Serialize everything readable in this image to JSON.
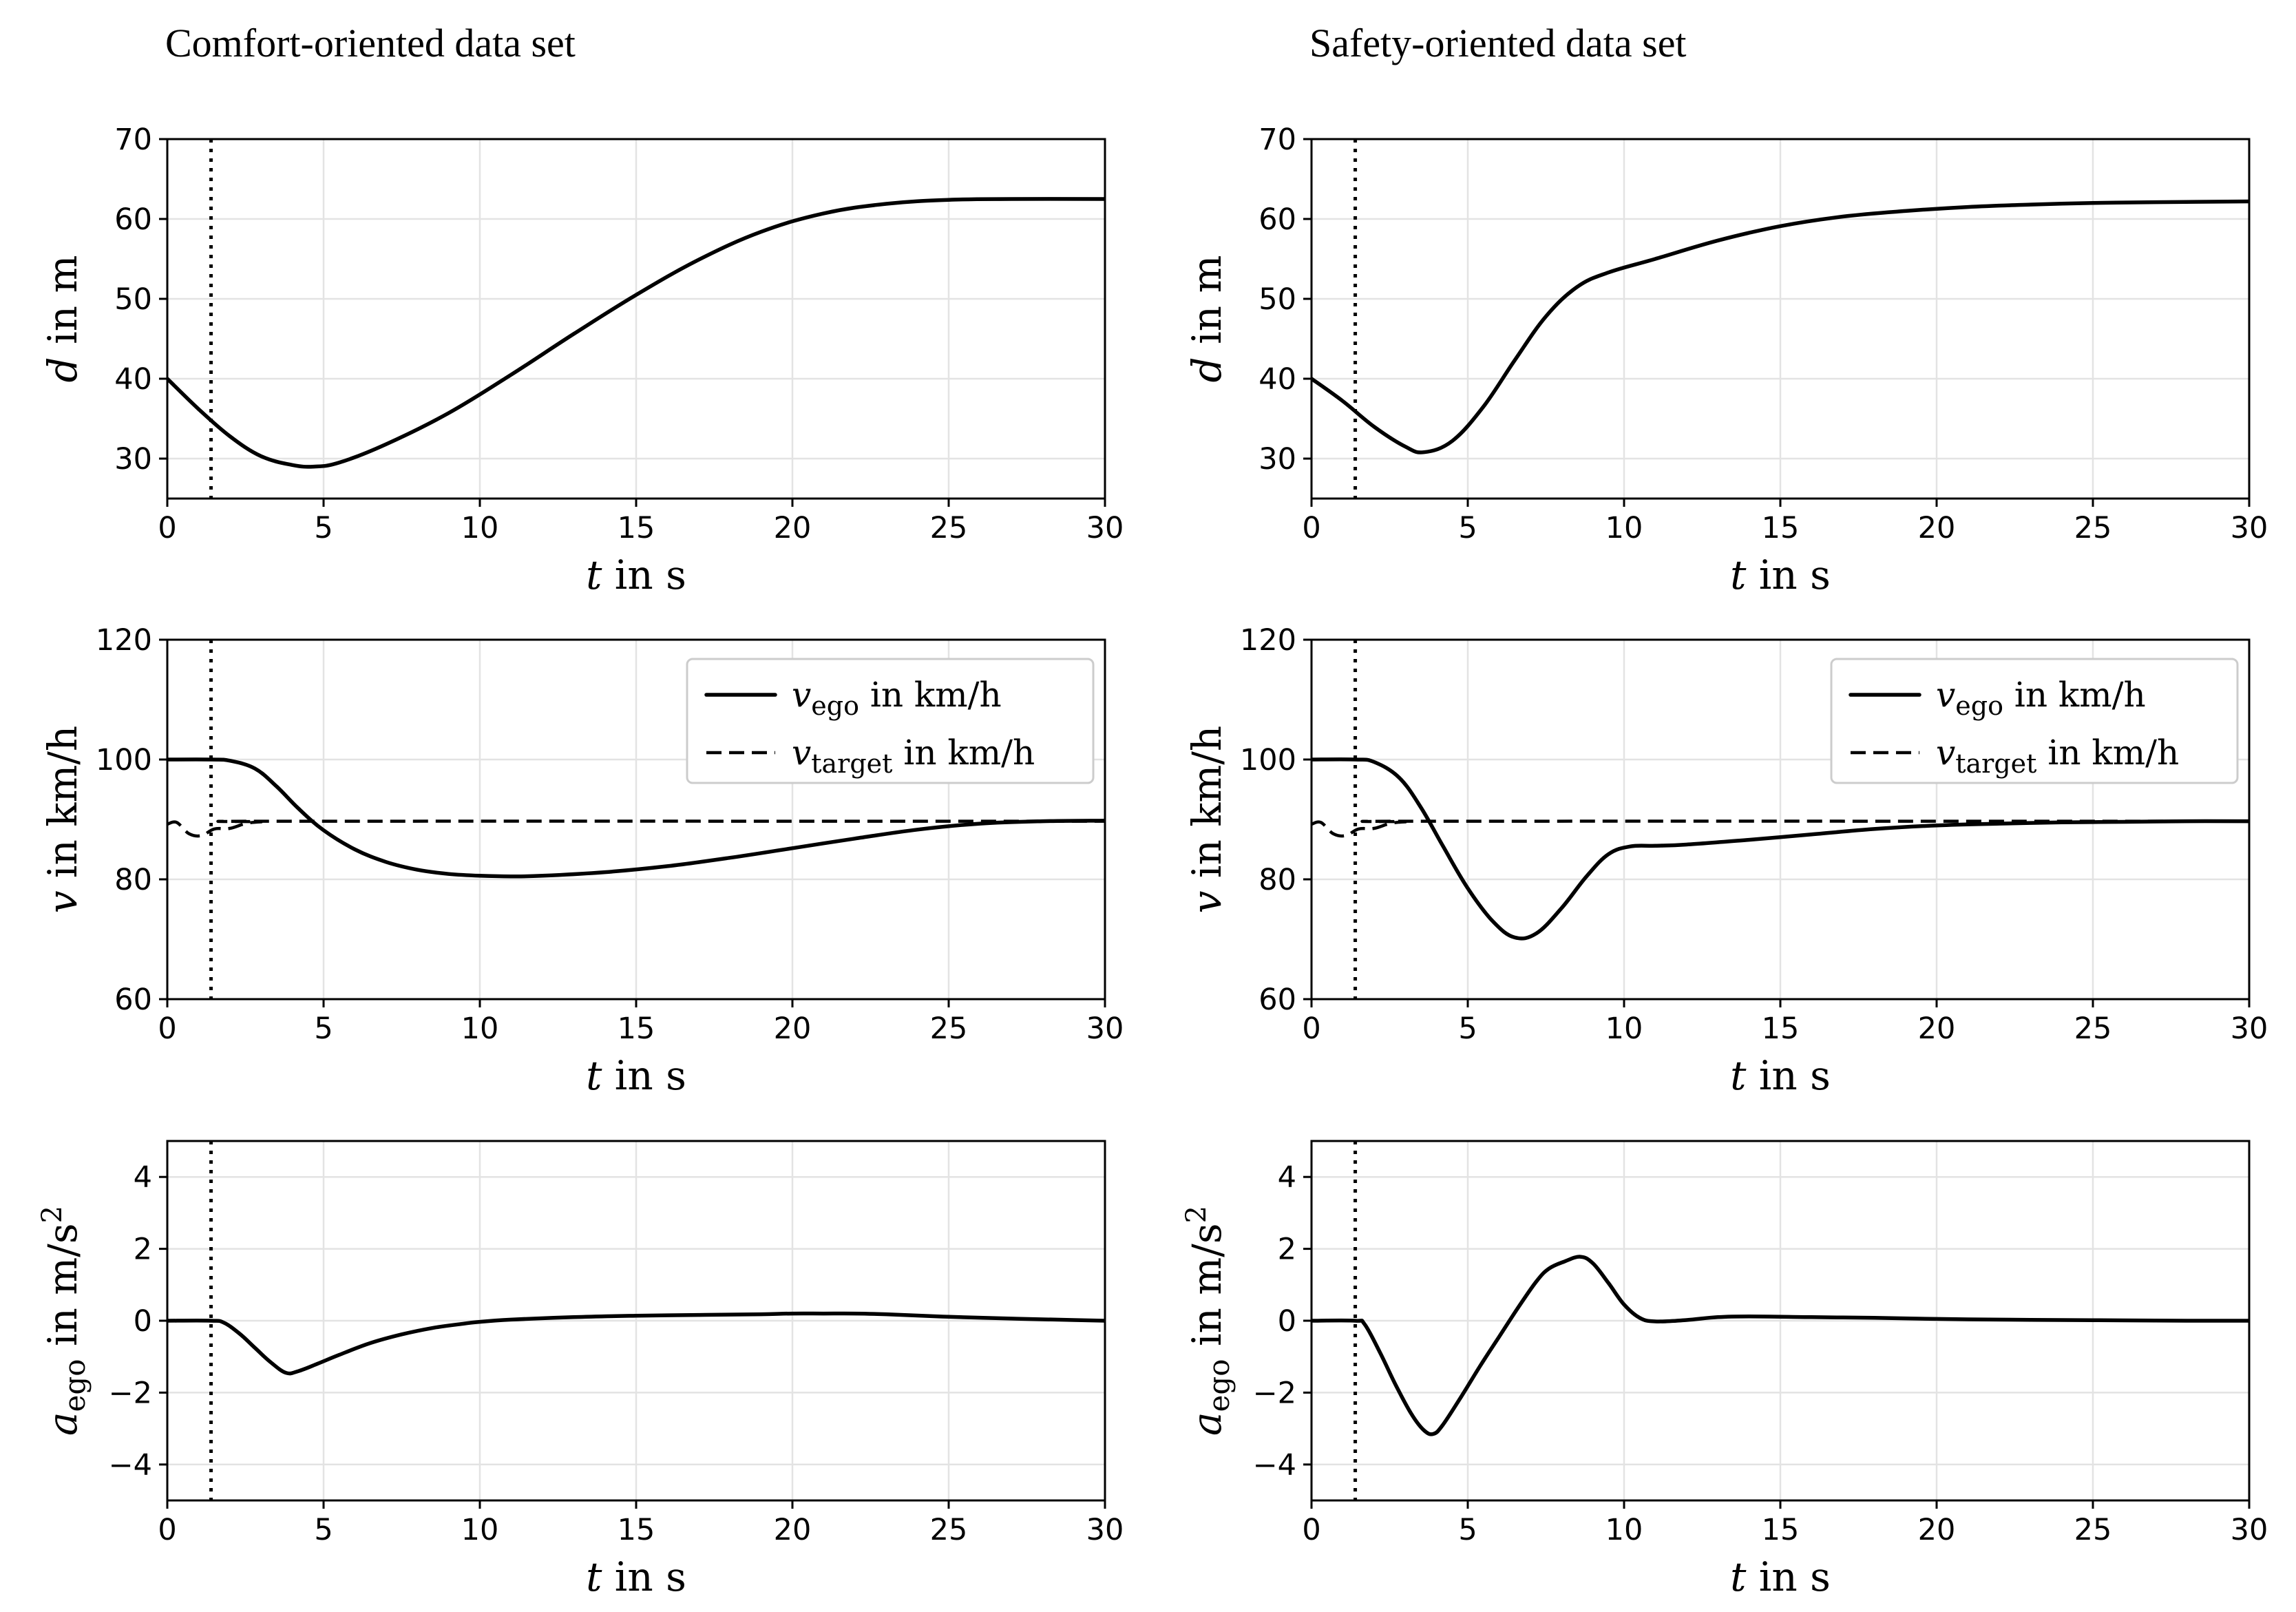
{
  "chart_data": [
    {
      "id": "comfort-d",
      "type": "line",
      "column_title": "Comfort-oriented data set",
      "xlabel": "t in s",
      "ylabel": "d in m",
      "xlim": [
        0,
        30
      ],
      "ylim": [
        25,
        70
      ],
      "xticks": [
        0,
        5,
        10,
        15,
        20,
        25,
        30
      ],
      "yticks": [
        30,
        40,
        50,
        60,
        70
      ],
      "grid": true,
      "vline_x": 1.4,
      "series": [
        {
          "name": "d",
          "style": "solid",
          "x": [
            0,
            1,
            2,
            3,
            4,
            4.7,
            5.5,
            7,
            9,
            11,
            13,
            15,
            17,
            19,
            21,
            23,
            25,
            27,
            30
          ],
          "y": [
            40,
            36.2,
            32.8,
            30.3,
            29.2,
            29,
            29.5,
            31.8,
            35.7,
            40.5,
            45.6,
            50.5,
            54.9,
            58.4,
            60.7,
            61.9,
            62.4,
            62.5,
            62.5
          ]
        }
      ]
    },
    {
      "id": "safety-d",
      "type": "line",
      "column_title": "Safety-oriented data set",
      "xlabel": "t in s",
      "ylabel": "d in m",
      "xlim": [
        0,
        30
      ],
      "ylim": [
        25,
        70
      ],
      "xticks": [
        0,
        5,
        10,
        15,
        20,
        25,
        30
      ],
      "yticks": [
        30,
        40,
        50,
        60,
        70
      ],
      "grid": true,
      "vline_x": 1.4,
      "series": [
        {
          "name": "d",
          "style": "solid",
          "x": [
            0,
            1,
            2,
            3,
            3.6,
            4.5,
            5.5,
            6.5,
            7.5,
            8.5,
            9.5,
            11,
            13,
            15,
            17,
            19,
            21,
            23,
            25,
            27,
            30
          ],
          "y": [
            40,
            37.2,
            34,
            31.5,
            30.8,
            32.2,
            36.5,
            42.3,
            47.8,
            51.5,
            53.3,
            55,
            57.3,
            59.1,
            60.3,
            61,
            61.5,
            61.8,
            62,
            62.1,
            62.2
          ]
        }
      ]
    },
    {
      "id": "comfort-v",
      "type": "line",
      "xlabel": "t in s",
      "ylabel": "v in km/h",
      "xlim": [
        0,
        30
      ],
      "ylim": [
        60,
        120
      ],
      "xticks": [
        0,
        5,
        10,
        15,
        20,
        25,
        30
      ],
      "yticks": [
        60,
        80,
        100,
        120
      ],
      "grid": true,
      "vline_x": 1.4,
      "legend": {
        "position": "top-right",
        "entries": [
          {
            "sym": "v",
            "sub": "ego",
            "rest": " in km/h",
            "style": "solid"
          },
          {
            "sym": "v",
            "sub": "target",
            "rest": " in km/h",
            "style": "dashed"
          }
        ]
      },
      "series": [
        {
          "name": "v_ego in km/h",
          "style": "solid",
          "x": [
            0,
            1.4,
            2,
            2.8,
            3.5,
            4.2,
            5,
            6,
            7,
            8,
            9,
            10,
            11,
            12,
            14,
            16,
            18,
            20,
            22,
            24,
            26,
            28,
            30
          ],
          "y": [
            100,
            100,
            99.8,
            98.5,
            95.5,
            91.8,
            88.2,
            85,
            82.9,
            81.6,
            80.9,
            80.6,
            80.5,
            80.6,
            81.2,
            82.2,
            83.6,
            85.2,
            86.8,
            88.3,
            89.3,
            89.7,
            89.8
          ]
        },
        {
          "name": "v_target in km/h",
          "style": "dashed",
          "x": [
            0,
            0.3,
            0.7,
            1.1,
            1.5,
            2,
            2.5,
            3,
            4,
            30
          ],
          "y": [
            89.2,
            89.5,
            87.6,
            87.3,
            88.4,
            88.5,
            89.3,
            89.6,
            89.7,
            89.7
          ]
        }
      ]
    },
    {
      "id": "safety-v",
      "type": "line",
      "xlabel": "t in s",
      "ylabel": "v in km/h",
      "xlim": [
        0,
        30
      ],
      "ylim": [
        60,
        120
      ],
      "xticks": [
        0,
        5,
        10,
        15,
        20,
        25,
        30
      ],
      "yticks": [
        60,
        80,
        100,
        120
      ],
      "grid": true,
      "vline_x": 1.4,
      "legend": {
        "position": "top-right",
        "entries": [
          {
            "sym": "v",
            "sub": "ego",
            "rest": " in km/h",
            "style": "solid"
          },
          {
            "sym": "v",
            "sub": "target",
            "rest": " in km/h",
            "style": "dashed"
          }
        ]
      },
      "series": [
        {
          "name": "v_ego in km/h",
          "style": "solid",
          "x": [
            0,
            1.4,
            2,
            2.8,
            3.5,
            4.2,
            5,
            5.8,
            6.5,
            7.2,
            8,
            8.8,
            9.5,
            10.2,
            11,
            12,
            14,
            16,
            18,
            20,
            22,
            24,
            26,
            28,
            30
          ],
          "y": [
            100,
            100,
            99.6,
            97,
            92,
            85.6,
            78.5,
            73,
            70.3,
            71,
            75.2,
            80.5,
            84.2,
            85.5,
            85.6,
            85.8,
            86.6,
            87.5,
            88.4,
            89,
            89.3,
            89.5,
            89.6,
            89.7,
            89.7
          ]
        },
        {
          "name": "v_target in km/h",
          "style": "dashed",
          "x": [
            0,
            0.3,
            0.7,
            1.1,
            1.5,
            2,
            2.5,
            3,
            4,
            30
          ],
          "y": [
            89.2,
            89.5,
            87.6,
            87.3,
            88.4,
            88.5,
            89.3,
            89.6,
            89.7,
            89.7
          ]
        }
      ]
    },
    {
      "id": "comfort-a",
      "type": "line",
      "xlabel": "t in s",
      "ylabel": "a_ego in m/s^2",
      "xlim": [
        0,
        30
      ],
      "ylim": [
        -5,
        5
      ],
      "xticks": [
        0,
        5,
        10,
        15,
        20,
        25,
        30
      ],
      "yticks": [
        -4,
        -2,
        0,
        2,
        4
      ],
      "grid": true,
      "vline_x": 1.4,
      "series": [
        {
          "name": "a_ego",
          "style": "solid",
          "x": [
            0,
            1.4,
            1.8,
            2.3,
            2.8,
            3.3,
            3.8,
            4.2,
            4.8,
            5.5,
            6.5,
            7.5,
            8.5,
            9.5,
            10,
            11,
            13,
            15,
            17,
            19,
            20,
            21,
            22,
            23,
            25,
            27,
            29,
            30
          ],
          "y": [
            0,
            0,
            -0.05,
            -0.35,
            -0.75,
            -1.15,
            -1.45,
            -1.4,
            -1.2,
            -0.95,
            -0.62,
            -0.38,
            -0.2,
            -0.08,
            -0.03,
            0.03,
            0.1,
            0.14,
            0.16,
            0.18,
            0.2,
            0.2,
            0.2,
            0.18,
            0.11,
            0.06,
            0.02,
            0
          ]
        }
      ]
    },
    {
      "id": "safety-a",
      "type": "line",
      "xlabel": "t in s",
      "ylabel": "a_ego in m/s^2",
      "xlim": [
        0,
        30
      ],
      "ylim": [
        -5,
        5
      ],
      "xticks": [
        0,
        5,
        10,
        15,
        20,
        25,
        30
      ],
      "yticks": [
        -4,
        -2,
        0,
        2,
        4
      ],
      "grid": true,
      "vline_x": 1.4,
      "series": [
        {
          "name": "a_ego",
          "style": "solid",
          "x": [
            0,
            1.4,
            1.7,
            2.2,
            2.7,
            3.2,
            3.6,
            3.9,
            4.2,
            4.8,
            5.4,
            6,
            6.6,
            7.2,
            7.6,
            8.1,
            8.6,
            9,
            9.5,
            10,
            10.5,
            11,
            12,
            13,
            14,
            16,
            18,
            20,
            22,
            24,
            26,
            28,
            30
          ],
          "y": [
            0,
            0,
            -0.1,
            -0.9,
            -1.8,
            -2.6,
            -3.05,
            -3.15,
            -2.9,
            -2.1,
            -1.25,
            -0.45,
            0.35,
            1.1,
            1.45,
            1.65,
            1.78,
            1.6,
            1.05,
            0.45,
            0.08,
            -0.02,
            0.02,
            0.1,
            0.12,
            0.1,
            0.08,
            0.05,
            0.03,
            0.02,
            0.01,
            0,
            0
          ]
        }
      ]
    }
  ]
}
